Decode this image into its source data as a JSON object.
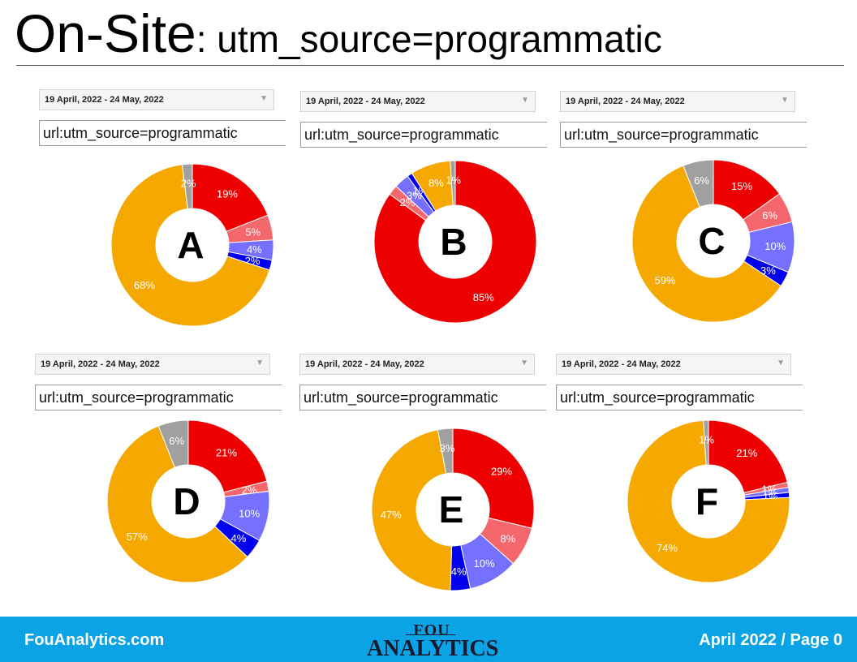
{
  "title": {
    "main": "On-Site",
    "rest": ": utm_source=programmatic"
  },
  "colors": {
    "direct": "#ef0000",
    "light_red": "#f4676d",
    "periwinkle": "#7570ff",
    "blue": "#0000ee",
    "orange": "#f5a800",
    "gray": "#a0a0a0"
  },
  "chart_data": [
    {
      "type": "pie",
      "label": "A",
      "date_range": "19 April, 2022 - 24 May, 2022",
      "filter": "url:utm_source=programmatic",
      "values": [
        19,
        5,
        4,
        2,
        68,
        2
      ],
      "labels": [
        "19%",
        "5%",
        "4%",
        "2%",
        "68%",
        "2%"
      ]
    },
    {
      "type": "pie",
      "label": "B",
      "date_range": "19 April, 2022 - 24 May, 2022",
      "filter": "url:utm_source=programmatic",
      "values": [
        85,
        2,
        3,
        1,
        8,
        1
      ],
      "labels": [
        "85%",
        "2%",
        "3%",
        "1%",
        "8%",
        "1%"
      ]
    },
    {
      "type": "pie",
      "label": "C",
      "date_range": "19 April, 2022 - 24 May, 2022",
      "filter": "url:utm_source=programmatic",
      "values": [
        15,
        6,
        10,
        3,
        59,
        6
      ],
      "labels": [
        "15%",
        "6%",
        "10%",
        "3%",
        "59%",
        "6%"
      ]
    },
    {
      "type": "pie",
      "label": "D",
      "date_range": "19 April, 2022 - 24 May, 2022",
      "filter": "url:utm_source=programmatic",
      "values": [
        21,
        2,
        10,
        4,
        57,
        6
      ],
      "labels": [
        "21%",
        "2%",
        "10%",
        "4%",
        "57%",
        "6%"
      ]
    },
    {
      "type": "pie",
      "label": "E",
      "date_range": "19 April, 2022 - 24 May, 2022",
      "filter": "url:utm_source=programmatic",
      "values": [
        29,
        8,
        10,
        4,
        47,
        3
      ],
      "labels": [
        "29%",
        "8%",
        "10%",
        "4%",
        "47%",
        "3%"
      ]
    },
    {
      "type": "pie",
      "label": "F",
      "date_range": "19 April, 2022 - 24 May, 2022",
      "filter": "url:utm_source=programmatic",
      "values": [
        21,
        1,
        1,
        1,
        74,
        1
      ],
      "labels": [
        "21%",
        "1%",
        "1%",
        "1%",
        "74%",
        "1%"
      ]
    }
  ],
  "footer": {
    "left": "FouAnalytics.com",
    "logo_line1": "FOU",
    "logo_line2": "ANALYTICS",
    "right": "April 2022 / Page 0"
  }
}
